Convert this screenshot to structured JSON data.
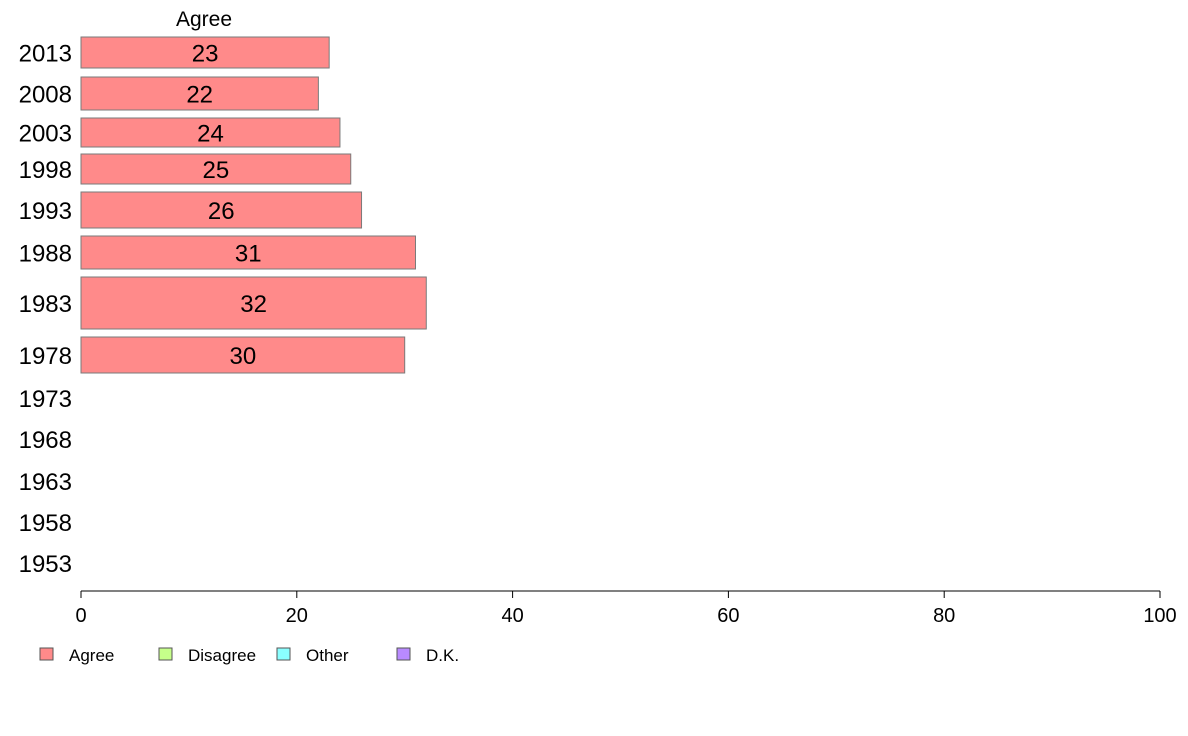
{
  "chart_data": {
    "type": "bar",
    "orientation": "horizontal",
    "series_header": "Agree",
    "categories": [
      "2013",
      "2008",
      "2003",
      "1998",
      "1993",
      "1988",
      "1983",
      "1978",
      "1973",
      "1968",
      "1963",
      "1958",
      "1953"
    ],
    "series": [
      {
        "name": "Agree",
        "color": "#ff8a8a",
        "values": [
          23,
          22,
          24,
          25,
          26,
          31,
          32,
          30,
          null,
          null,
          null,
          null,
          null
        ],
        "labels": [
          "23",
          "22",
          "24",
          "25",
          "26",
          "31",
          "32",
          "30",
          "",
          "",
          "",
          "",
          ""
        ]
      }
    ],
    "xlim": [
      0,
      100
    ],
    "xticks": [
      "0",
      "20",
      "40",
      "60",
      "80",
      "100"
    ],
    "grid": false,
    "legend_position": "bottom-left",
    "legend": [
      {
        "label": "Agree",
        "color": "#ff8a8a"
      },
      {
        "label": "Disagree",
        "color": "#c6ff8a"
      },
      {
        "label": "Other",
        "color": "#8affff"
      },
      {
        "label": "D.K.",
        "color": "#b98aff"
      }
    ]
  }
}
